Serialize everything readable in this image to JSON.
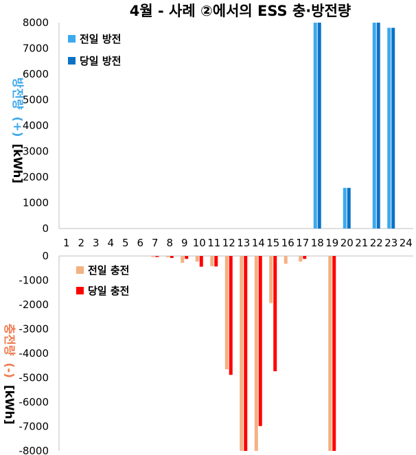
{
  "chart_data": [
    {
      "type": "bar",
      "title": "4월 - 사례 ②에서의 ESS 충·방전량",
      "ylabel": {
        "main": "방전량",
        "sign": "(+)",
        "unit": "[kWh]"
      },
      "ylim": [
        0,
        8000
      ],
      "yticks": [
        "0",
        "1000",
        "2000",
        "3000",
        "4000",
        "5000",
        "6000",
        "7000",
        "8000"
      ],
      "categories": [
        "1",
        "2",
        "3",
        "4",
        "5",
        "6",
        "7",
        "8",
        "9",
        "10",
        "11",
        "12",
        "13",
        "14",
        "15",
        "16",
        "17",
        "18",
        "19",
        "20",
        "21",
        "22",
        "23",
        "24"
      ],
      "legend": "top-left",
      "colors": {
        "label": "#3fa8ee"
      },
      "series": [
        {
          "name": "전일 방전",
          "color": "#3ca9ec",
          "values": [
            0,
            0,
            0,
            0,
            0,
            0,
            0,
            0,
            0,
            0,
            0,
            0,
            0,
            0,
            0,
            0,
            0,
            8000,
            0,
            1580,
            0,
            8000,
            7800,
            0
          ]
        },
        {
          "name": "당일 방전",
          "color": "#0b72c6",
          "values": [
            0,
            0,
            0,
            0,
            0,
            0,
            0,
            0,
            0,
            0,
            0,
            0,
            0,
            0,
            0,
            0,
            0,
            8000,
            0,
            1580,
            0,
            8000,
            7800,
            0
          ]
        }
      ]
    },
    {
      "type": "bar",
      "ylabel": {
        "main": "충전량",
        "sign": "(-)",
        "unit": "[kWh]"
      },
      "ylim": [
        -8000,
        0
      ],
      "yticks": [
        "0",
        "-1000",
        "-2000",
        "-3000",
        "-4000",
        "-5000",
        "-6000",
        "-7000",
        "-8000"
      ],
      "legend": "top-left",
      "colors": {
        "label": "#f07c52"
      },
      "series": [
        {
          "name": "전일 충전",
          "color": "#f4b183",
          "values": [
            0,
            0,
            0,
            0,
            0,
            0,
            -30,
            -50,
            -280,
            -230,
            -420,
            -4650,
            -8000,
            -8000,
            -1930,
            -320,
            -230,
            0,
            -8000,
            0,
            0,
            0,
            0,
            0
          ]
        },
        {
          "name": "당일 충전",
          "color": "#ff0000",
          "values": [
            0,
            0,
            0,
            0,
            0,
            0,
            -40,
            -80,
            -120,
            -440,
            -430,
            -4880,
            -8000,
            -6980,
            -4730,
            0,
            -120,
            0,
            -8000,
            0,
            0,
            0,
            0,
            0
          ]
        }
      ]
    }
  ]
}
